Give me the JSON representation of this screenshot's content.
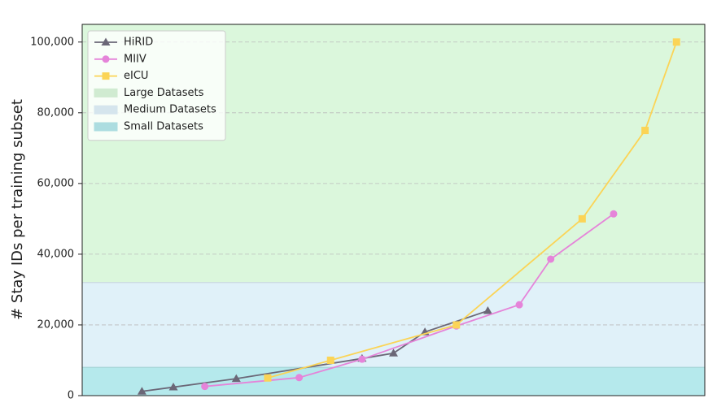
{
  "chart_data": {
    "type": "line",
    "y_label": "# Stay IDs per training subset",
    "xlim": [
      -1.9,
      17.9
    ],
    "ylim": [
      0,
      105000
    ],
    "yticks": [
      0,
      {
        "value": 20000,
        "label": "20,000"
      },
      {
        "value": 40000,
        "label": "40,000"
      },
      {
        "value": 60000,
        "label": "60,000"
      },
      {
        "value": 80000,
        "label": "80,000"
      },
      {
        "value": 100000,
        "label": "100,000"
      }
    ],
    "grid": true,
    "legend": "upper left",
    "series": [
      {
        "name": "HiRID",
        "color": "#6b6777",
        "marker": "triangle",
        "x": [
          0,
          1,
          3,
          7,
          8,
          9,
          11
        ],
        "values": [
          1200,
          2400,
          4800,
          10500,
          12000,
          18000,
          24000
        ]
      },
      {
        "name": "MIIV",
        "color": "#e584d9",
        "marker": "circle",
        "x": [
          2,
          5,
          7,
          10,
          12,
          13,
          15
        ],
        "values": [
          2600,
          5100,
          10300,
          19700,
          25700,
          38600,
          51400
        ]
      },
      {
        "name": "eICU",
        "color": "#fbd456",
        "marker": "square",
        "x": [
          4,
          6,
          10,
          14,
          16,
          17
        ],
        "values": [
          5000,
          10000,
          20000,
          50000,
          75000,
          100000
        ]
      }
    ],
    "bands": [
      {
        "name": "Large Datasets",
        "color": "#dbf7dc",
        "range": [
          32000,
          105000
        ]
      },
      {
        "name": "Medium Datasets",
        "color": "#e0f1f9",
        "range": [
          8000,
          32000
        ]
      },
      {
        "name": "Small Datasets",
        "color": "#b5e9ec",
        "range": [
          0,
          8000
        ]
      }
    ]
  }
}
